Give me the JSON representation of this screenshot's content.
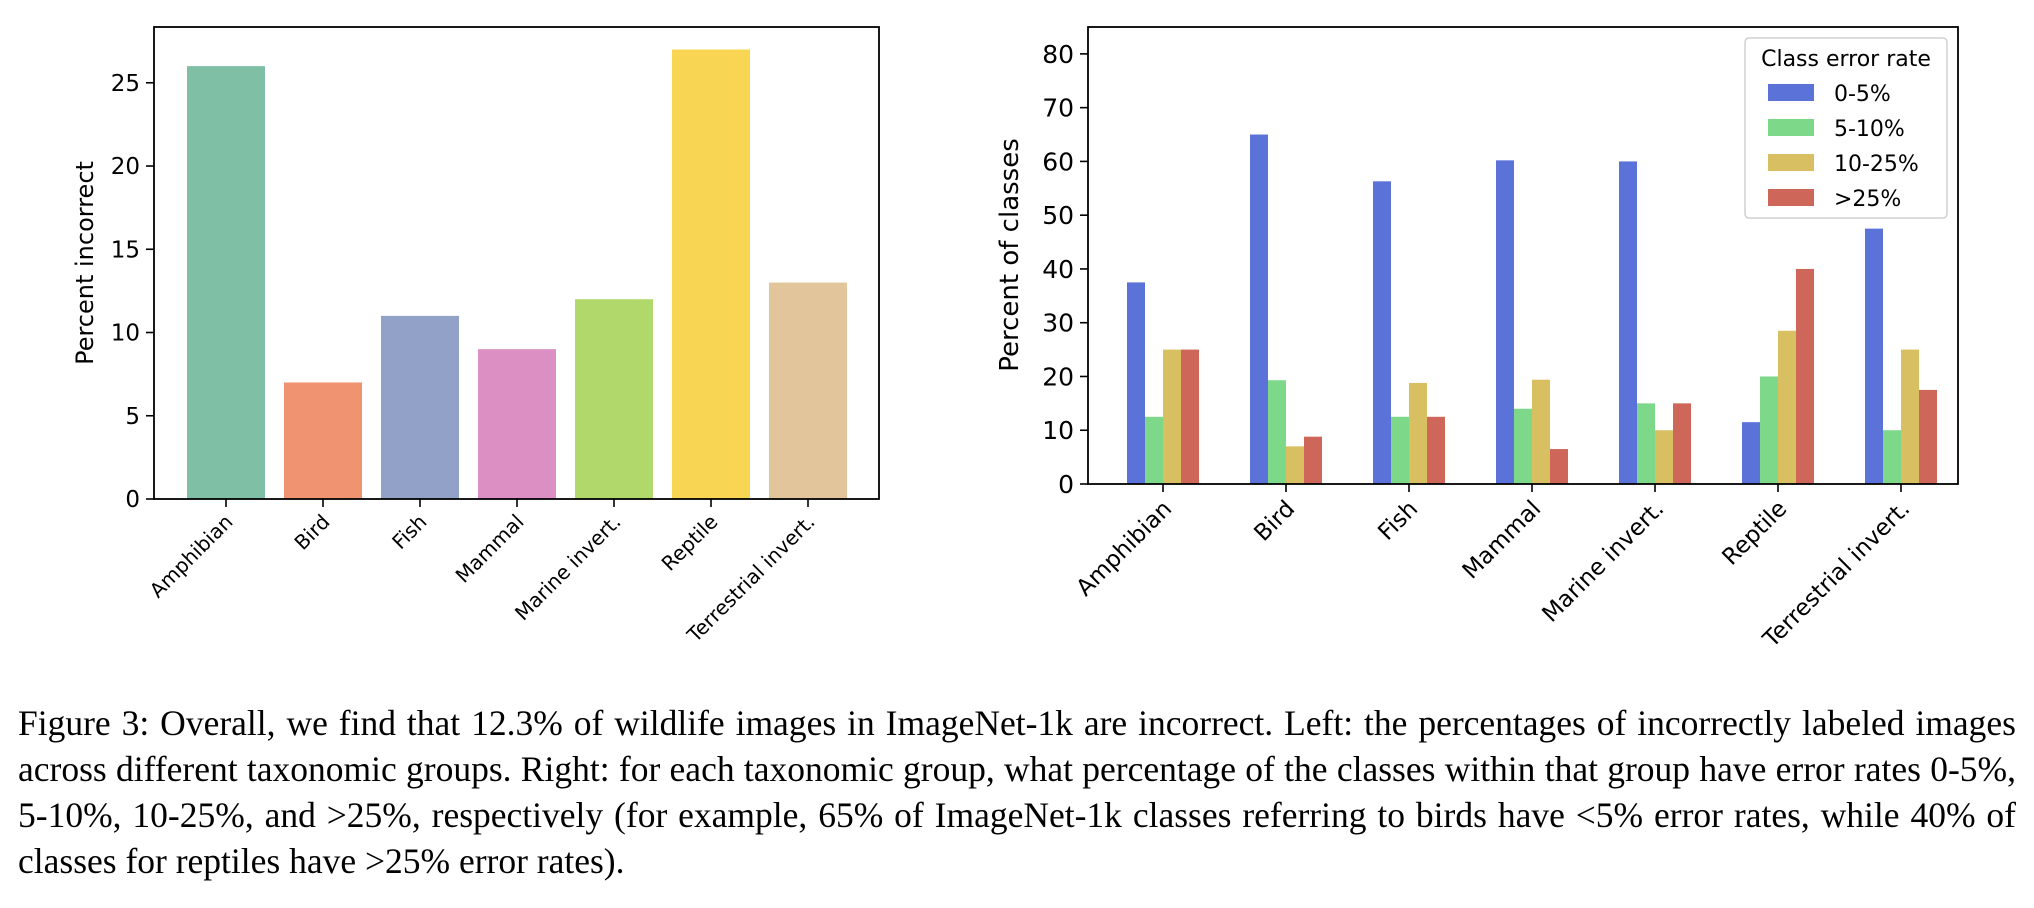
{
  "chart_data": [
    {
      "type": "bar",
      "ylabel": "Percent incorrect",
      "xlabel": "",
      "categories": [
        "Amphibian",
        "Bird",
        "Fish",
        "Mammal",
        "Marine invert.",
        "Reptile",
        "Terrestrial invert."
      ],
      "values": [
        26,
        7,
        11,
        9,
        12,
        27,
        13
      ],
      "colors": [
        "#7fbfa5",
        "#ef9370",
        "#92a1c8",
        "#db8fc3",
        "#b0d86a",
        "#f8d654",
        "#e2c59b"
      ],
      "ylim": [
        0,
        28.35
      ],
      "yticks": [
        0,
        5,
        10,
        15,
        20,
        25
      ],
      "grid": false
    },
    {
      "type": "bar",
      "ylabel": "Percent of classes",
      "xlabel": "",
      "categories": [
        "Amphibian",
        "Bird",
        "Fish",
        "Mammal",
        "Marine invert.",
        "Reptile",
        "Terrestrial invert."
      ],
      "legend_title": "Class error rate",
      "legend_position": "top-right",
      "series": [
        {
          "name": "0-5%",
          "color": "#5b73d8",
          "values": [
            37.5,
            65,
            56.3,
            60.2,
            60,
            11.5,
            47.5
          ]
        },
        {
          "name": "5-10%",
          "color": "#7ed889",
          "values": [
            12.5,
            19.3,
            12.5,
            14,
            15,
            20,
            10
          ]
        },
        {
          "name": "10-25%",
          "color": "#d7bf62",
          "values": [
            25,
            7,
            18.8,
            19.4,
            10,
            28.5,
            25
          ]
        },
        {
          "name": ">25%",
          "color": "#cf665a",
          "values": [
            25,
            8.8,
            12.5,
            6.5,
            15,
            40,
            17.5
          ]
        }
      ],
      "ylim": [
        0,
        85
      ],
      "yticks": [
        0,
        10,
        20,
        30,
        40,
        50,
        60,
        70,
        80
      ],
      "grid": false
    }
  ],
  "caption": "Figure 3: Overall, we find that 12.3% of wildlife images in ImageNet-1k are incorrect. Left: the percentages of incorrectly labeled images across different taxonomic groups. Right: for each taxonomic group, what percentage of the classes within that group have error rates 0-5%, 5-10%, 10-25%, and >25%, respectively (for example, 65% of ImageNet-1k classes referring to birds have <5% error rates, while 40% of classes for reptiles have >25% error rates)."
}
